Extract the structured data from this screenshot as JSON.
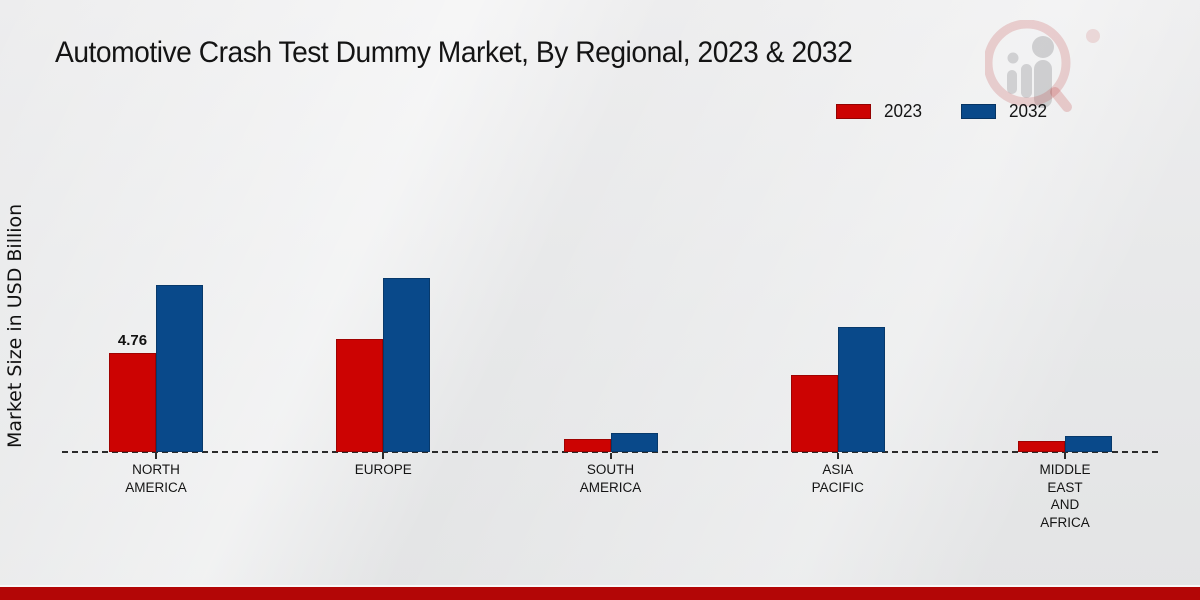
{
  "title": "Automotive Crash Test Dummy Market, By Regional, 2023 & 2032",
  "ylabel": "Market Size in USD Billion",
  "colors": {
    "series_2023": "#cc0302",
    "series_2032": "#09498a",
    "footer_band": "#b30606",
    "background": "#e9eaeb",
    "text": "#141414"
  },
  "chart_data": {
    "type": "bar",
    "title": "Automotive Crash Test Dummy Market, By Regional, 2023 & 2032",
    "xlabel": "",
    "ylabel": "Market Size in USD Billion",
    "unit": "USD Billion",
    "grid": "off",
    "legend_position": "top-right",
    "baseline": "dashed zero line",
    "ylim": [
      0,
      10
    ],
    "categories": [
      "North America",
      "Europe",
      "South America",
      "Asia Pacific",
      "Middle East and Africa"
    ],
    "category_display_lines": [
      [
        "NORTH",
        "AMERICA"
      ],
      [
        "EUROPE"
      ],
      [
        "SOUTH",
        "AMERICA"
      ],
      [
        "ASIA",
        "PACIFIC"
      ],
      [
        "MIDDLE",
        "EAST",
        "AND",
        "AFRICA"
      ]
    ],
    "series": [
      {
        "name": "2023",
        "color": "#cc0302",
        "values": [
          4.76,
          5.43,
          0.63,
          3.7,
          0.53
        ],
        "bar_labels": [
          "4.76",
          null,
          null,
          null,
          null
        ]
      },
      {
        "name": "2032",
        "color": "#09498a",
        "values": [
          8.03,
          8.37,
          0.91,
          6.01,
          0.77
        ],
        "bar_labels": [
          null,
          null,
          null,
          null,
          null
        ]
      }
    ]
  }
}
